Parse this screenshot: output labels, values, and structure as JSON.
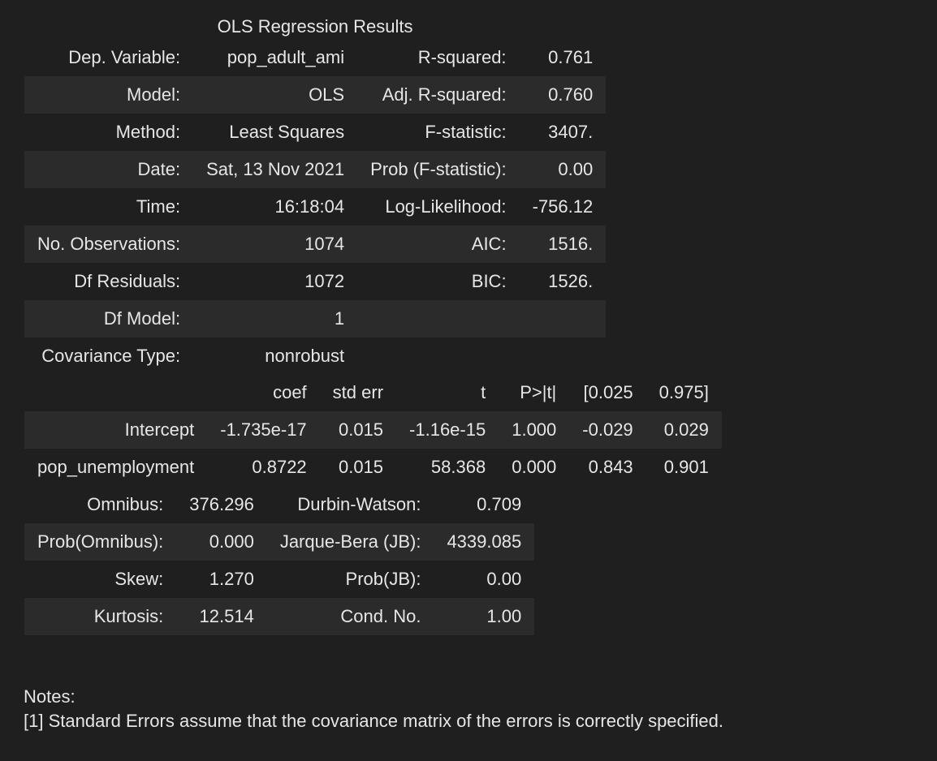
{
  "title": "OLS Regression Results",
  "summary_rows": [
    [
      "Dep. Variable:",
      "pop_adult_ami",
      "R-squared:",
      "0.761"
    ],
    [
      "Model:",
      "OLS",
      "Adj. R-squared:",
      "0.760"
    ],
    [
      "Method:",
      "Least Squares",
      "F-statistic:",
      "3407."
    ],
    [
      "Date:",
      "Sat, 13 Nov 2021",
      "Prob (F-statistic):",
      "0.00"
    ],
    [
      "Time:",
      "16:18:04",
      "Log-Likelihood:",
      "-756.12"
    ],
    [
      "No. Observations:",
      "1074",
      "AIC:",
      "1516."
    ],
    [
      "Df Residuals:",
      "1072",
      "BIC:",
      "1526."
    ],
    [
      "Df Model:",
      "1",
      "",
      ""
    ],
    [
      "Covariance Type:",
      "nonrobust",
      "",
      ""
    ]
  ],
  "coef_header": [
    "",
    "coef",
    "std err",
    "t",
    "P>|t|",
    "[0.025",
    "0.975]"
  ],
  "coef_rows": [
    [
      "Intercept",
      "-1.735e-17",
      "0.015",
      "-1.16e-15",
      "1.000",
      "-0.029",
      "0.029"
    ],
    [
      "pop_unemployment",
      "0.8722",
      "0.015",
      "58.368",
      "0.000",
      "0.843",
      "0.901"
    ]
  ],
  "diag_rows": [
    [
      "Omnibus:",
      "376.296",
      "Durbin-Watson:",
      "0.709"
    ],
    [
      "Prob(Omnibus):",
      "0.000",
      "Jarque-Bera (JB):",
      "4339.085"
    ],
    [
      "Skew:",
      "1.270",
      "Prob(JB):",
      "0.00"
    ],
    [
      "Kurtosis:",
      "12.514",
      "Cond. No.",
      "1.00"
    ]
  ],
  "notes": {
    "heading": "Notes:",
    "lines": [
      "[1] Standard Errors assume that the covariance matrix of the errors is correctly specified."
    ]
  }
}
